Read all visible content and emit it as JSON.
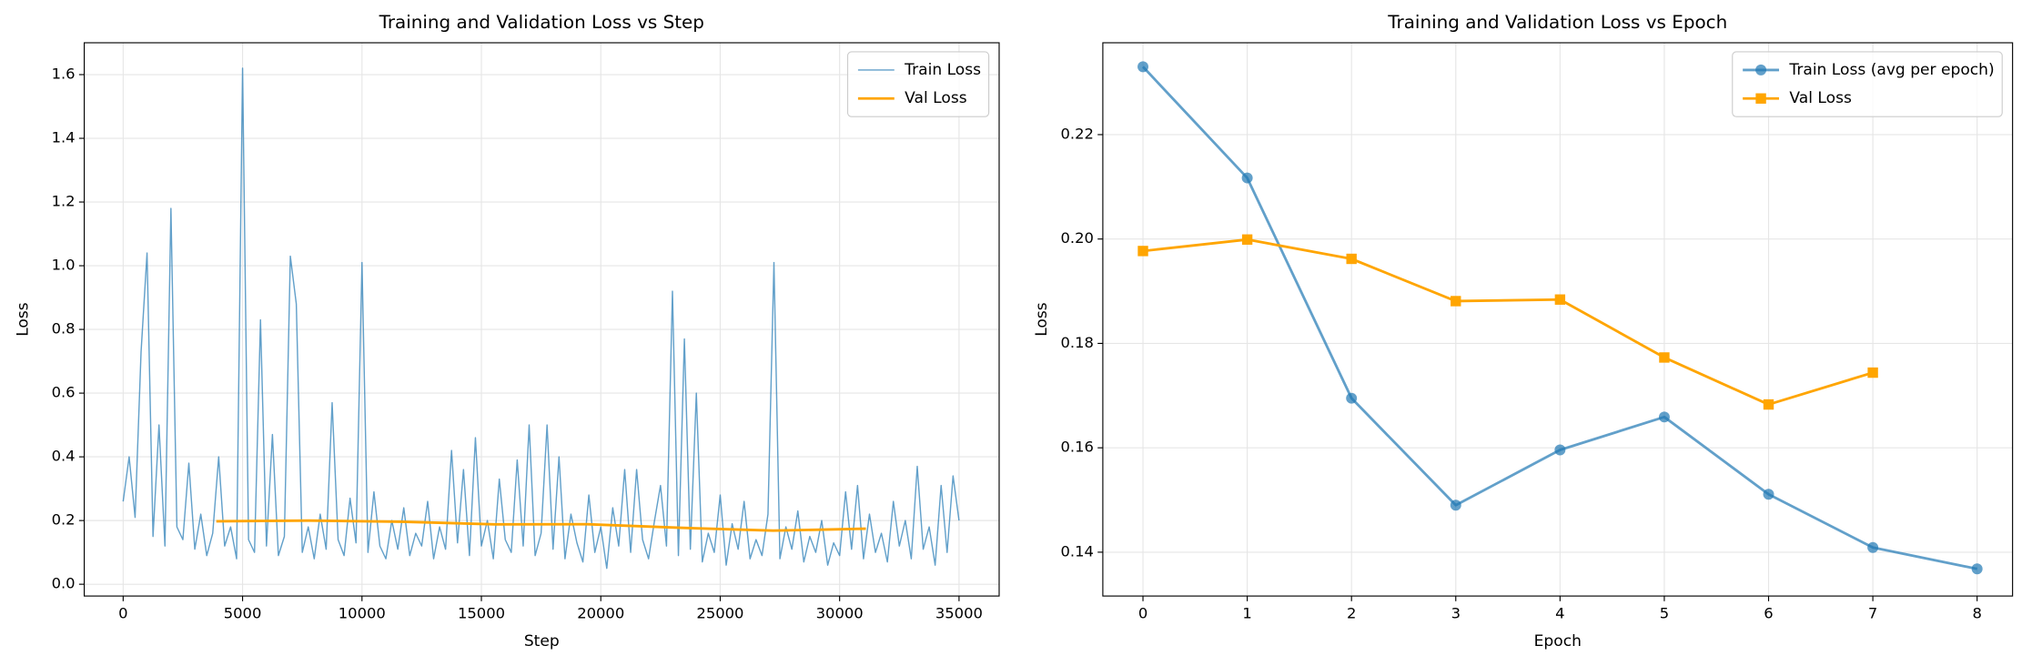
{
  "chart_data": [
    {
      "type": "line",
      "title": "Training and Validation Loss vs Step",
      "xlabel": "Step",
      "ylabel": "Loss",
      "xlim": [
        -1630,
        36680
      ],
      "ylim": [
        -0.037,
        1.7
      ],
      "xticks": [
        0,
        5000,
        10000,
        15000,
        20000,
        25000,
        30000,
        35000
      ],
      "yticks": [
        {
          "value": 0,
          "label": "0.0"
        },
        0.2,
        0.4,
        0.6,
        0.8,
        {
          "value": 1,
          "label": "1.0"
        },
        1.2,
        1.4,
        1.6
      ],
      "grid": true,
      "legend": "upper right",
      "series": [
        {
          "name": "Train Loss",
          "color": "#1f77b4",
          "alpha": 0.7,
          "linewidth": 1,
          "x": [
            0,
            250,
            500,
            750,
            1000,
            1250,
            1500,
            1750,
            2000,
            2250,
            2500,
            2750,
            3000,
            3250,
            3500,
            3750,
            4000,
            4250,
            4500,
            4750,
            5000,
            5250,
            5500,
            5750,
            6000,
            6250,
            6500,
            6750,
            7000,
            7250,
            7500,
            7750,
            8000,
            8250,
            8500,
            8750,
            9000,
            9250,
            9500,
            9750,
            10000,
            10250,
            10500,
            10750,
            11000,
            11250,
            11500,
            11750,
            12000,
            12250,
            12500,
            12750,
            13000,
            13250,
            13500,
            13750,
            14000,
            14250,
            14500,
            14750,
            15000,
            15250,
            15500,
            15750,
            16000,
            16250,
            16500,
            16750,
            17000,
            17250,
            17500,
            17750,
            18000,
            18250,
            18500,
            18750,
            19000,
            19250,
            19500,
            19750,
            20000,
            20250,
            20500,
            20750,
            21000,
            21250,
            21500,
            21750,
            22000,
            22250,
            22500,
            22750,
            23000,
            23250,
            23500,
            23750,
            24000,
            24250,
            24500,
            24750,
            25000,
            25250,
            25500,
            25750,
            26000,
            26250,
            26500,
            26750,
            27000,
            27250,
            27500,
            27750,
            28000,
            28250,
            28500,
            28750,
            29000,
            29250,
            29500,
            29750,
            30000,
            30250,
            30500,
            30750,
            31000,
            31250,
            31500,
            31750,
            32000,
            32250,
            32500,
            32750,
            33000,
            33250,
            33500,
            33750,
            34000,
            34250,
            34500,
            34750,
            35000
          ],
          "values": [
            0.26,
            0.4,
            0.21,
            0.73,
            1.04,
            0.15,
            0.5,
            0.12,
            1.18,
            0.18,
            0.14,
            0.38,
            0.11,
            0.22,
            0.09,
            0.16,
            0.4,
            0.12,
            0.18,
            0.08,
            1.62,
            0.14,
            0.1,
            0.83,
            0.12,
            0.47,
            0.09,
            0.15,
            1.03,
            0.88,
            0.1,
            0.18,
            0.08,
            0.22,
            0.11,
            0.57,
            0.14,
            0.09,
            0.27,
            0.13,
            1.01,
            0.1,
            0.29,
            0.12,
            0.08,
            0.2,
            0.11,
            0.24,
            0.09,
            0.16,
            0.12,
            0.26,
            0.08,
            0.18,
            0.11,
            0.42,
            0.13,
            0.36,
            0.09,
            0.46,
            0.12,
            0.2,
            0.08,
            0.33,
            0.14,
            0.1,
            0.39,
            0.12,
            0.5,
            0.09,
            0.16,
            0.5,
            0.11,
            0.4,
            0.08,
            0.22,
            0.13,
            0.07,
            0.28,
            0.1,
            0.18,
            0.05,
            0.24,
            0.12,
            0.36,
            0.1,
            0.36,
            0.14,
            0.08,
            0.2,
            0.31,
            0.12,
            0.92,
            0.09,
            0.77,
            0.11,
            0.6,
            0.07,
            0.16,
            0.1,
            0.28,
            0.06,
            0.19,
            0.11,
            0.26,
            0.08,
            0.14,
            0.09,
            0.22,
            1.01,
            0.08,
            0.18,
            0.11,
            0.23,
            0.07,
            0.15,
            0.1,
            0.2,
            0.06,
            0.13,
            0.09,
            0.29,
            0.11,
            0.31,
            0.08,
            0.22,
            0.1,
            0.16,
            0.07,
            0.26,
            0.12,
            0.2,
            0.08,
            0.37,
            0.11,
            0.18,
            0.06,
            0.31,
            0.1,
            0.34,
            0.2
          ]
        },
        {
          "name": "Val Loss",
          "color": "#ffa500",
          "alpha": 1,
          "linewidth": 2,
          "x": [
            3900,
            7786,
            11671,
            15557,
            19443,
            23329,
            27214,
            31100
          ],
          "values": [
            0.1977,
            0.1999,
            0.1962,
            0.1881,
            0.1884,
            0.1773,
            0.1683,
            0.1744
          ]
        }
      ]
    },
    {
      "type": "line",
      "title": "Training and Validation Loss vs Epoch",
      "xlabel": "Epoch",
      "ylabel": "Loss",
      "xlim": [
        -0.385,
        8.34
      ],
      "ylim": [
        0.1316,
        0.2376
      ],
      "xticks": [
        0,
        1,
        2,
        3,
        4,
        5,
        6,
        7,
        8
      ],
      "yticks": [
        0.14,
        0.16,
        0.18,
        {
          "value": 0.2,
          "label": "0.20"
        },
        0.22
      ],
      "grid": true,
      "legend": "upper right",
      "series": [
        {
          "name": "Train Loss (avg per epoch)",
          "color": "#1f77b4",
          "alpha": 0.7,
          "linewidth": 2,
          "marker": "circle",
          "x": [
            0,
            1,
            2,
            3,
            4,
            5,
            6,
            7,
            8
          ],
          "values": [
            0.233,
            0.2117,
            0.1695,
            0.149,
            0.1596,
            0.1659,
            0.1511,
            0.1409,
            0.1368
          ]
        },
        {
          "name": "Val Loss",
          "color": "#ffa500",
          "alpha": 1,
          "linewidth": 2,
          "marker": "square",
          "x": [
            0,
            1,
            2,
            3,
            4,
            5,
            6,
            7
          ],
          "values": [
            0.1977,
            0.1999,
            0.1962,
            0.1881,
            0.1884,
            0.1773,
            0.1683,
            0.1744
          ]
        }
      ]
    }
  ]
}
